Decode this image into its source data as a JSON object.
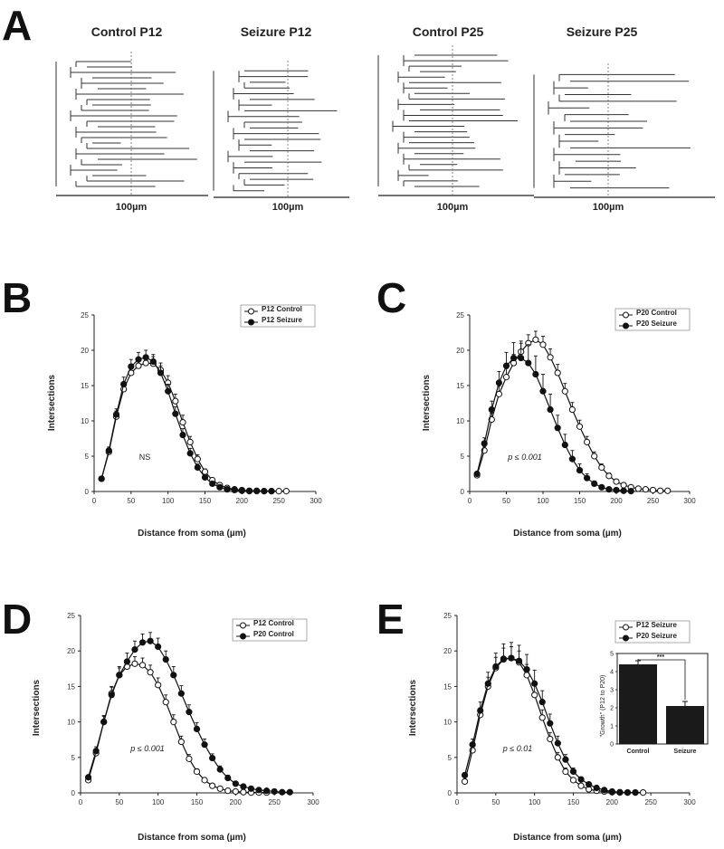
{
  "panel_a": {
    "letter": "A",
    "trees": [
      {
        "title": "Control P12",
        "scale_label": "100µm",
        "branches": [
          3,
          5,
          2,
          6,
          4,
          7,
          3,
          5,
          6,
          4,
          2,
          5,
          7,
          3,
          4,
          6,
          5,
          3,
          7,
          4,
          2,
          6,
          5,
          3
        ],
        "seed": 3
      },
      {
        "title": "Seizure P12",
        "scale_label": "100µm",
        "branches": [
          5,
          4,
          6,
          5,
          3,
          6,
          4,
          5,
          2,
          5,
          6,
          3,
          5,
          4,
          6,
          2,
          5,
          3,
          4,
          6,
          5,
          3
        ],
        "seed": 7
      },
      {
        "title": "Control P25",
        "scale_label": "100µm",
        "branches": [
          6,
          4,
          5,
          7,
          3,
          5,
          4,
          6,
          5,
          3,
          7,
          4,
          5,
          2,
          6,
          4,
          5,
          3,
          6,
          4,
          7,
          5,
          3,
          4,
          6
        ],
        "seed": 11
      },
      {
        "title": "Seizure P25",
        "scale_label": "100µm",
        "branches": [
          4,
          6,
          3,
          5,
          4,
          2,
          5,
          6,
          3,
          5,
          4,
          6,
          3,
          7,
          4,
          5,
          3,
          6
        ],
        "seed": 17
      }
    ]
  },
  "chart_data": [
    {
      "type": "line",
      "letter": "B",
      "xlabel": "Distance from soma (µm)",
      "ylabel": "Intersections",
      "xlim": [
        0,
        300
      ],
      "ylim": [
        0,
        25
      ],
      "xticks": [
        0,
        50,
        100,
        150,
        200,
        250,
        300
      ],
      "yticks": [
        0,
        5,
        10,
        15,
        20,
        25
      ],
      "annotation": "NS",
      "series": [
        {
          "name": "P12 Control",
          "marker": "open",
          "x": [
            10,
            20,
            30,
            40,
            50,
            60,
            70,
            80,
            90,
            100,
            110,
            120,
            130,
            140,
            150,
            160,
            170,
            180,
            190,
            200,
            210,
            220,
            230,
            240,
            250,
            260
          ],
          "y": [
            1.8,
            5.6,
            10.6,
            14.5,
            16.8,
            17.8,
            18.2,
            18.1,
            17.2,
            15.4,
            12.8,
            9.8,
            7.0,
            4.6,
            2.8,
            1.6,
            0.9,
            0.5,
            0.3,
            0.2,
            0.1,
            0.1,
            0.05,
            0.05,
            0.05,
            0.05
          ],
          "err": [
            0.2,
            0.5,
            0.8,
            1.0,
            1.0,
            1.0,
            1.0,
            1.0,
            1.0,
            1.0,
            1.0,
            1.0,
            0.8,
            0.6,
            0.4,
            0.3,
            0.2,
            0.1,
            0.1,
            0.1,
            0.05,
            0.05,
            0,
            0,
            0,
            0
          ]
        },
        {
          "name": "P12 Seizure",
          "marker": "filled",
          "x": [
            10,
            20,
            30,
            40,
            50,
            60,
            70,
            80,
            90,
            100,
            110,
            120,
            130,
            140,
            150,
            160,
            170,
            180,
            190,
            200,
            210,
            220,
            230,
            240
          ],
          "y": [
            1.8,
            5.8,
            10.9,
            15.2,
            17.7,
            18.7,
            19.0,
            18.4,
            16.8,
            14.2,
            11.0,
            8.0,
            5.4,
            3.4,
            2.0,
            1.1,
            0.6,
            0.3,
            0.2,
            0.1,
            0.05,
            0.05,
            0.05,
            0.05
          ],
          "err": [
            0.2,
            0.5,
            0.8,
            1.0,
            1.0,
            1.0,
            1.0,
            1.0,
            1.0,
            1.0,
            1.0,
            0.9,
            0.7,
            0.5,
            0.3,
            0.2,
            0.1,
            0.1,
            0.05,
            0.05,
            0,
            0,
            0,
            0
          ]
        }
      ]
    },
    {
      "type": "line",
      "letter": "C",
      "xlabel": "Distance from soma (µm)",
      "ylabel": "Intersections",
      "xlim": [
        0,
        300
      ],
      "ylim": [
        0,
        25
      ],
      "xticks": [
        0,
        50,
        100,
        150,
        200,
        250,
        300
      ],
      "yticks": [
        0,
        5,
        10,
        15,
        20,
        25
      ],
      "annotation": "p ≤ 0.001",
      "series": [
        {
          "name": "P20 Control",
          "marker": "open",
          "x": [
            10,
            20,
            30,
            40,
            50,
            60,
            70,
            80,
            90,
            100,
            110,
            120,
            130,
            140,
            150,
            160,
            170,
            180,
            190,
            200,
            210,
            220,
            230,
            240,
            250,
            260,
            270
          ],
          "y": [
            2.3,
            5.8,
            10.2,
            13.8,
            16.2,
            18.2,
            19.8,
            21.0,
            21.5,
            20.8,
            19.0,
            16.8,
            14.2,
            11.6,
            9.2,
            7.0,
            5.0,
            3.4,
            2.2,
            1.4,
            0.9,
            0.6,
            0.4,
            0.3,
            0.2,
            0.1,
            0.1
          ],
          "err": [
            0.3,
            0.6,
            0.9,
            1.1,
            1.2,
            1.2,
            1.2,
            1.2,
            1.2,
            1.2,
            1.2,
            1.2,
            1.1,
            1.0,
            0.9,
            0.8,
            0.6,
            0.5,
            0.4,
            0.3,
            0.2,
            0.1,
            0.1,
            0.1,
            0.05,
            0.05,
            0.05
          ]
        },
        {
          "name": "P20 Seizure",
          "marker": "filled",
          "x": [
            10,
            20,
            30,
            40,
            50,
            60,
            70,
            80,
            90,
            100,
            110,
            120,
            130,
            140,
            150,
            160,
            170,
            180,
            190,
            200,
            210,
            220
          ],
          "y": [
            2.5,
            6.8,
            11.6,
            15.4,
            17.8,
            18.9,
            18.9,
            18.2,
            16.6,
            14.2,
            11.6,
            9.0,
            6.6,
            4.6,
            3.0,
            1.9,
            1.1,
            0.6,
            0.3,
            0.2,
            0.1,
            0.05
          ],
          "err": [
            0.3,
            0.8,
            1.2,
            1.6,
            1.9,
            2.2,
            2.4,
            2.6,
            2.6,
            2.4,
            2.2,
            1.8,
            1.5,
            1.2,
            0.9,
            0.6,
            0.4,
            0.3,
            0.2,
            0.1,
            0.05,
            0
          ]
        }
      ]
    },
    {
      "type": "line",
      "letter": "D",
      "xlabel": "Distance from soma (µm)",
      "ylabel": "Intersections",
      "xlim": [
        0,
        300
      ],
      "ylim": [
        0,
        25
      ],
      "xticks": [
        0,
        50,
        100,
        150,
        200,
        250,
        300
      ],
      "yticks": [
        0,
        5,
        10,
        15,
        20,
        25
      ],
      "annotation": "p ≤ 0.001",
      "series": [
        {
          "name": "P12 Control",
          "marker": "open",
          "x": [
            10,
            20,
            30,
            40,
            50,
            60,
            70,
            80,
            90,
            100,
            110,
            120,
            130,
            140,
            150,
            160,
            170,
            180,
            190,
            200,
            210,
            220,
            230,
            240
          ],
          "y": [
            1.8,
            5.6,
            10.0,
            14.0,
            16.6,
            17.8,
            18.2,
            18.0,
            17.0,
            15.2,
            12.8,
            10.0,
            7.2,
            4.8,
            3.0,
            1.8,
            1.0,
            0.6,
            0.3,
            0.2,
            0.1,
            0.05,
            0.05,
            0.05
          ],
          "err": [
            0.2,
            0.5,
            0.8,
            1.0,
            1.0,
            1.0,
            1.0,
            1.0,
            1.0,
            1.0,
            1.0,
            1.0,
            0.8,
            0.6,
            0.4,
            0.3,
            0.2,
            0.1,
            0.1,
            0.1,
            0.05,
            0,
            0,
            0
          ]
        },
        {
          "name": "P20 Control",
          "marker": "filled",
          "x": [
            10,
            20,
            30,
            40,
            50,
            60,
            70,
            80,
            90,
            100,
            110,
            120,
            130,
            140,
            150,
            160,
            170,
            180,
            190,
            200,
            210,
            220,
            230,
            240,
            250,
            260,
            270
          ],
          "y": [
            2.2,
            5.9,
            10.0,
            13.8,
            16.6,
            18.5,
            20.2,
            21.2,
            21.4,
            20.6,
            18.8,
            16.6,
            14.0,
            11.4,
            9.0,
            6.8,
            4.9,
            3.3,
            2.1,
            1.3,
            0.9,
            0.6,
            0.4,
            0.3,
            0.2,
            0.1,
            0.1
          ],
          "err": [
            0.3,
            0.6,
            0.9,
            1.1,
            1.2,
            1.2,
            1.2,
            1.2,
            1.2,
            1.2,
            1.2,
            1.2,
            1.1,
            1.0,
            0.9,
            0.8,
            0.6,
            0.5,
            0.4,
            0.3,
            0.2,
            0.1,
            0.1,
            0.1,
            0.05,
            0.05,
            0.05
          ]
        }
      ]
    },
    {
      "type": "line",
      "letter": "E",
      "xlabel": "Distance from soma (µm)",
      "ylabel": "Intersections",
      "xlim": [
        0,
        300
      ],
      "ylim": [
        0,
        25
      ],
      "xticks": [
        0,
        50,
        100,
        150,
        200,
        250,
        300
      ],
      "yticks": [
        0,
        5,
        10,
        15,
        20,
        25
      ],
      "annotation": "p ≤ 0.01",
      "series": [
        {
          "name": "P12 Seizure",
          "marker": "open",
          "x": [
            10,
            20,
            30,
            40,
            50,
            60,
            70,
            80,
            90,
            100,
            110,
            120,
            130,
            140,
            150,
            160,
            170,
            180,
            190,
            200,
            210,
            220,
            230,
            240
          ],
          "y": [
            1.6,
            6.0,
            11.0,
            15.0,
            17.6,
            18.8,
            19.0,
            18.4,
            16.6,
            13.8,
            10.6,
            7.6,
            5.0,
            3.0,
            1.8,
            1.0,
            0.5,
            0.3,
            0.2,
            0.1,
            0.05,
            0.05,
            0.05,
            0.05
          ],
          "err": [
            0.2,
            0.6,
            1.0,
            1.3,
            1.5,
            1.6,
            1.6,
            1.6,
            1.5,
            1.3,
            1.1,
            0.9,
            0.7,
            0.5,
            0.3,
            0.2,
            0.1,
            0.1,
            0.05,
            0.05,
            0,
            0,
            0,
            0
          ]
        },
        {
          "name": "P20 Seizure",
          "marker": "filled",
          "x": [
            10,
            20,
            30,
            40,
            50,
            60,
            70,
            80,
            90,
            100,
            110,
            120,
            130,
            140,
            150,
            160,
            170,
            180,
            190,
            200,
            210,
            220,
            230
          ],
          "y": [
            2.5,
            6.8,
            11.6,
            15.4,
            17.8,
            18.9,
            19.0,
            18.6,
            17.4,
            15.4,
            12.8,
            9.8,
            7.0,
            4.7,
            3.0,
            1.9,
            1.2,
            0.7,
            0.4,
            0.2,
            0.1,
            0.05,
            0.05
          ],
          "err": [
            0.3,
            0.8,
            1.2,
            1.6,
            1.9,
            2.1,
            2.2,
            2.2,
            2.1,
            1.9,
            1.6,
            1.3,
            1.0,
            0.7,
            0.5,
            0.3,
            0.2,
            0.1,
            0.1,
            0.05,
            0,
            0,
            0
          ]
        }
      ],
      "inset": {
        "type": "bar",
        "ylabel": "\"Growth\" (P12 to P20)",
        "ylim": [
          0,
          5
        ],
        "yticks": [
          0,
          1,
          2,
          3,
          4,
          5
        ],
        "categories": [
          "Control",
          "Seizure"
        ],
        "values": [
          4.4,
          2.1
        ],
        "err": [
          0.2,
          0.25
        ],
        "significance": "***"
      }
    }
  ]
}
